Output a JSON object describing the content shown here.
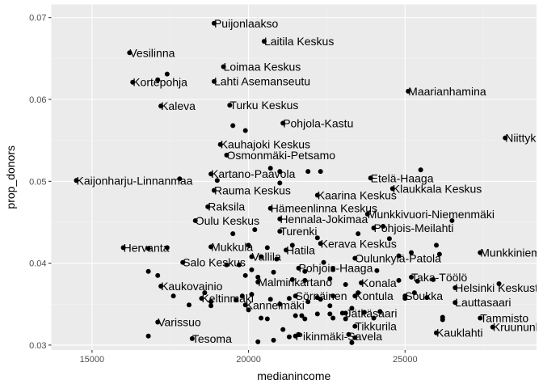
{
  "chart_data": {
    "type": "scatter",
    "title": "",
    "xlabel": "medianincome",
    "ylabel": "prop_donors",
    "xlim": [
      13700,
      29200
    ],
    "ylim": [
      0.0294,
      0.0716
    ],
    "x_ticks": [
      15000,
      20000,
      25000
    ],
    "x_tick_labels": [
      "15000",
      "20000",
      "25000"
    ],
    "y_ticks": [
      0.03,
      0.04,
      0.05,
      0.06,
      0.07
    ],
    "y_tick_labels": [
      "0.03",
      "0.04",
      "0.05",
      "0.06",
      "0.07"
    ],
    "grid": true,
    "colors": {
      "panel": "#ebebeb",
      "grid_major": "#ffffff",
      "grid_minor": "#f2f2f2",
      "point": "#000000",
      "tick_text": "#4d4d4d",
      "tick_mark": "#333333"
    },
    "labeled_points": [
      {
        "label": "Puijonlaakso",
        "x": 18900,
        "y": 0.0693
      },
      {
        "label": "Laitila Keskus",
        "x": 20500,
        "y": 0.0671
      },
      {
        "label": "Vesilinna",
        "x": 16200,
        "y": 0.0657
      },
      {
        "label": "Loimaa Keskus",
        "x": 19200,
        "y": 0.064
      },
      {
        "label": "Kortepohja",
        "x": 16300,
        "y": 0.0621
      },
      {
        "label": "Lahti Asemanseutu",
        "x": 18900,
        "y": 0.0622
      },
      {
        "label": "Maarianhamina",
        "x": 25100,
        "y": 0.061
      },
      {
        "label": "Kaleva",
        "x": 17200,
        "y": 0.0592
      },
      {
        "label": "Turku Keskus",
        "x": 19400,
        "y": 0.0593
      },
      {
        "label": "Pohjola-Kastu",
        "x": 21100,
        "y": 0.0571
      },
      {
        "label": "Niittykumpu",
        "x": 28200,
        "y": 0.0553
      },
      {
        "label": "Kauhajoki Keskus",
        "x": 19100,
        "y": 0.0545
      },
      {
        "label": "Osmonmäki-Petsamo",
        "x": 19300,
        "y": 0.0532
      },
      {
        "label": "Kartano-Paavola",
        "x": 18800,
        "y": 0.0509
      },
      {
        "label": "Etelä-Haaga",
        "x": 23900,
        "y": 0.0504
      },
      {
        "label": "Kaijonharju-Linnanmaa",
        "x": 14500,
        "y": 0.0501
      },
      {
        "label": "Klaukkala Keskus",
        "x": 24600,
        "y": 0.0491
      },
      {
        "label": "Rauma Keskus",
        "x": 18900,
        "y": 0.0489
      },
      {
        "label": "Kaarina Keskus",
        "x": 22200,
        "y": 0.0483
      },
      {
        "label": "Raksila",
        "x": 18700,
        "y": 0.0469
      },
      {
        "label": "Hämeenlinna Keskus",
        "x": 20700,
        "y": 0.0467
      },
      {
        "label": "Munkkivuori-Niemenmäki",
        "x": 23800,
        "y": 0.046
      },
      {
        "label": "Oulu Keskus",
        "x": 18300,
        "y": 0.0452
      },
      {
        "label": "Hennala-Jokimaa",
        "x": 21000,
        "y": 0.0454
      },
      {
        "label": "Pohjois-Meilahti",
        "x": 24000,
        "y": 0.0443
      },
      {
        "label": "Turenki",
        "x": 21000,
        "y": 0.0439
      },
      {
        "label": "Hervanta",
        "x": 16000,
        "y": 0.0419
      },
      {
        "label": "Mukkula",
        "x": 18800,
        "y": 0.042
      },
      {
        "label": "Kerava Keskus",
        "x": 22300,
        "y": 0.0424
      },
      {
        "label": "Hatila",
        "x": 21200,
        "y": 0.0416
      },
      {
        "label": "Munkkiniemi",
        "x": 27400,
        "y": 0.0413
      },
      {
        "label": "Vallila",
        "x": 20100,
        "y": 0.0408
      },
      {
        "label": "Oulunkylä-Patola",
        "x": 23400,
        "y": 0.0406
      },
      {
        "label": "Salo Keskus",
        "x": 17900,
        "y": 0.0401
      },
      {
        "label": "Pohjois-Haaga",
        "x": 21600,
        "y": 0.0394
      },
      {
        "label": "Taka-Töölö",
        "x": 25200,
        "y": 0.0383
      },
      {
        "label": "Malminkartano",
        "x": 20300,
        "y": 0.0377
      },
      {
        "label": "Konala",
        "x": 23600,
        "y": 0.0376
      },
      {
        "label": "Kaukovainio",
        "x": 17200,
        "y": 0.0372
      },
      {
        "label": "Helsinki Keskusta",
        "x": 26600,
        "y": 0.037
      },
      {
        "label": "Sörnäinen",
        "x": 21500,
        "y": 0.036
      },
      {
        "label": "Kontula",
        "x": 23400,
        "y": 0.036
      },
      {
        "label": "Soukka",
        "x": 25000,
        "y": 0.036
      },
      {
        "label": "Keltinmäki",
        "x": 18500,
        "y": 0.0357
      },
      {
        "label": "Kannelmäki",
        "x": 19900,
        "y": 0.0349
      },
      {
        "label": "Lauttasaari",
        "x": 26600,
        "y": 0.0352
      },
      {
        "label": "Jätkäsaari",
        "x": 23100,
        "y": 0.0339
      },
      {
        "label": "Tammisto",
        "x": 27400,
        "y": 0.0333
      },
      {
        "label": "Varissuo",
        "x": 17100,
        "y": 0.0328
      },
      {
        "label": "Tikkurila",
        "x": 23400,
        "y": 0.0323
      },
      {
        "label": "Kruununhaka",
        "x": 27800,
        "y": 0.0322
      },
      {
        "label": "Kauklahti",
        "x": 26000,
        "y": 0.0315
      },
      {
        "label": "Pikinmäki-Savela",
        "x": 21500,
        "y": 0.0311
      },
      {
        "label": "Tesoma",
        "x": 18200,
        "y": 0.0308
      }
    ],
    "unlabeled_points": [
      [
        17400,
        0.0631
      ],
      [
        17100,
        0.0624
      ],
      [
        19500,
        0.0568
      ],
      [
        19900,
        0.0562
      ],
      [
        20700,
        0.0516
      ],
      [
        21000,
        0.0512
      ],
      [
        21900,
        0.0512
      ],
      [
        22300,
        0.0512
      ],
      [
        25500,
        0.0514
      ],
      [
        19000,
        0.0501
      ],
      [
        17800,
        0.0503
      ],
      [
        21000,
        0.0498
      ],
      [
        26500,
        0.0452
      ],
      [
        24300,
        0.0445
      ],
      [
        22200,
        0.0431
      ],
      [
        23500,
        0.0436
      ],
      [
        24500,
        0.043
      ],
      [
        19500,
        0.0436
      ],
      [
        20200,
        0.0441
      ],
      [
        16800,
        0.0418
      ],
      [
        17400,
        0.0419
      ],
      [
        20000,
        0.0422
      ],
      [
        20600,
        0.0419
      ],
      [
        21400,
        0.0422
      ],
      [
        26000,
        0.0422
      ],
      [
        20400,
        0.0408
      ],
      [
        20900,
        0.0405
      ],
      [
        22400,
        0.0401
      ],
      [
        24800,
        0.0409
      ],
      [
        25200,
        0.0413
      ],
      [
        26100,
        0.0411
      ],
      [
        19300,
        0.0398
      ],
      [
        19700,
        0.0398
      ],
      [
        20100,
        0.0392
      ],
      [
        20800,
        0.0389
      ],
      [
        21800,
        0.039
      ],
      [
        22700,
        0.0393
      ],
      [
        24100,
        0.0391
      ],
      [
        16800,
        0.039
      ],
      [
        17100,
        0.0385
      ],
      [
        19900,
        0.0385
      ],
      [
        20300,
        0.0383
      ],
      [
        21400,
        0.038
      ],
      [
        21800,
        0.0379
      ],
      [
        22600,
        0.0381
      ],
      [
        23100,
        0.0374
      ],
      [
        24800,
        0.0379
      ],
      [
        25400,
        0.0378
      ],
      [
        25900,
        0.038
      ],
      [
        28000,
        0.0375
      ],
      [
        17600,
        0.036
      ],
      [
        18600,
        0.0364
      ],
      [
        19800,
        0.036
      ],
      [
        20100,
        0.0362
      ],
      [
        21300,
        0.0357
      ],
      [
        22200,
        0.0358
      ],
      [
        22700,
        0.036
      ],
      [
        23500,
        0.0364
      ],
      [
        25000,
        0.0357
      ],
      [
        25300,
        0.0364
      ],
      [
        25700,
        0.0358
      ],
      [
        18800,
        0.0353
      ],
      [
        19600,
        0.0355
      ],
      [
        20700,
        0.0356
      ],
      [
        21000,
        0.035
      ],
      [
        21900,
        0.0353
      ],
      [
        22300,
        0.0356
      ],
      [
        22600,
        0.0348
      ],
      [
        23300,
        0.0345
      ],
      [
        20000,
        0.0343
      ],
      [
        21700,
        0.0336
      ],
      [
        22200,
        0.0338
      ],
      [
        22600,
        0.0338
      ],
      [
        23000,
        0.0339
      ],
      [
        23700,
        0.034
      ],
      [
        24200,
        0.0341
      ],
      [
        20400,
        0.0333
      ],
      [
        20600,
        0.0332
      ],
      [
        21500,
        0.0336
      ],
      [
        21800,
        0.0332
      ],
      [
        22700,
        0.0333
      ],
      [
        23100,
        0.0332
      ],
      [
        24000,
        0.0333
      ],
      [
        26200,
        0.0331
      ],
      [
        26200,
        0.0334
      ],
      [
        21100,
        0.0319
      ],
      [
        21600,
        0.0313
      ],
      [
        23200,
        0.0313
      ],
      [
        23400,
        0.0309
      ],
      [
        16800,
        0.0311
      ],
      [
        20300,
        0.0304
      ],
      [
        20800,
        0.0306
      ],
      [
        21300,
        0.031
      ],
      [
        23300,
        0.0303
      ],
      [
        18100,
        0.0349
      ],
      [
        18800,
        0.0348
      ]
    ]
  }
}
